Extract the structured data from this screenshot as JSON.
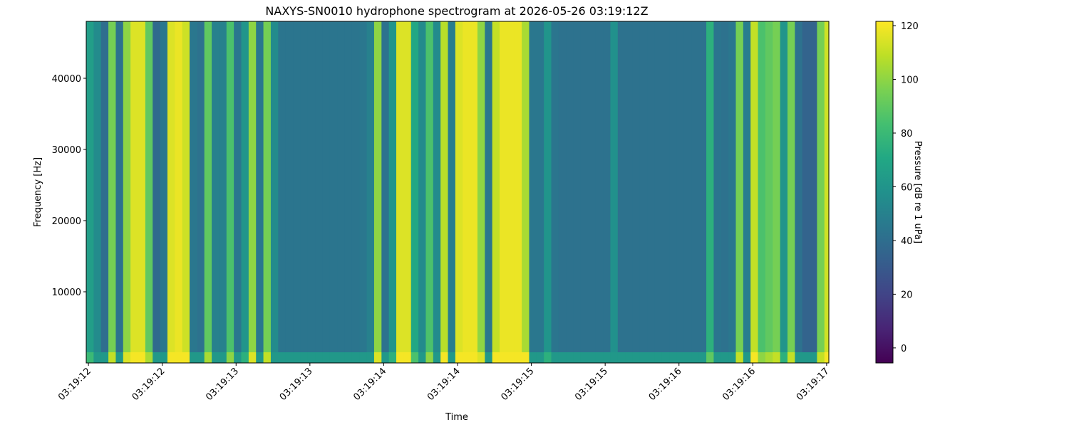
{
  "chart_data": {
    "type": "heatmap",
    "title": "NAXYS-SN0010 hydrophone spectrogram at 2026-05-26 03:19:12Z",
    "xlabel": "Time",
    "ylabel": "Frequency [Hz]",
    "colorbar_label": "Pressure [dB re 1 uPa]",
    "colormap": "viridis",
    "xlim": [
      11951.985,
      11957.015
    ],
    "xticks": [
      {
        "value": 11952,
        "label": "03:19:12"
      },
      {
        "value": 11952.5,
        "label": "03:19:12"
      },
      {
        "value": 11953,
        "label": "03:19:13"
      },
      {
        "value": 11953.5,
        "label": "03:19:13"
      },
      {
        "value": 11954,
        "label": "03:19:14"
      },
      {
        "value": 11954.5,
        "label": "03:19:14"
      },
      {
        "value": 11955,
        "label": "03:19:15"
      },
      {
        "value": 11955.5,
        "label": "03:19:15"
      },
      {
        "value": 11956,
        "label": "03:19:16"
      },
      {
        "value": 11956.5,
        "label": "03:19:16"
      },
      {
        "value": 11957,
        "label": "03:19:17"
      }
    ],
    "ylim": [
      0,
      48000
    ],
    "yticks": [
      10000,
      20000,
      30000,
      40000
    ],
    "clim": [
      -5.6,
      121.6
    ],
    "cticks": [
      0,
      20,
      40,
      60,
      80,
      100,
      120
    ],
    "x_edges": [
      11951.985,
      11952.035,
      11952.085,
      11952.135,
      11952.185,
      11952.235,
      11952.285,
      11952.335,
      11952.385,
      11952.435,
      11952.485,
      11952.535,
      11952.585,
      11952.635,
      11952.685,
      11952.735,
      11952.785,
      11952.835,
      11952.885,
      11952.935,
      11952.985,
      11953.035,
      11953.085,
      11953.135,
      11953.185,
      11953.235,
      11953.285,
      11953.335,
      11953.385,
      11953.435,
      11953.485,
      11953.535,
      11953.585,
      11953.635,
      11953.685,
      11953.735,
      11953.785,
      11953.835,
      11953.885,
      11953.935,
      11953.985,
      11954.035,
      11954.085,
      11954.135,
      11954.185,
      11954.235,
      11954.285,
      11954.335,
      11954.385,
      11954.435,
      11954.485,
      11954.535,
      11954.585,
      11954.635,
      11954.685,
      11954.735,
      11954.785,
      11954.835,
      11954.885,
      11954.935,
      11954.985,
      11955.035,
      11955.085,
      11955.135,
      11955.185,
      11955.235,
      11955.285,
      11955.335,
      11955.385,
      11955.435,
      11955.485,
      11955.535,
      11955.585,
      11955.635,
      11955.685,
      11955.735,
      11955.785,
      11955.835,
      11955.885,
      11955.935,
      11955.985,
      11956.035,
      11956.085,
      11956.135,
      11956.185,
      11956.235,
      11956.285,
      11956.335,
      11956.385,
      11956.435,
      11956.485,
      11956.535,
      11956.585,
      11956.635,
      11956.685,
      11956.735,
      11956.785,
      11956.835,
      11956.885,
      11956.935,
      11956.985,
      11957.015
    ],
    "y_edges": [
      0,
      1500,
      48000
    ],
    "z": [
      [
        80,
        62,
        62,
        110,
        62,
        115,
        120,
        120,
        105,
        62,
        62,
        120,
        120,
        120,
        62,
        62,
        105,
        62,
        62,
        100,
        62,
        75,
        115,
        62,
        110,
        62,
        62,
        62,
        62,
        62,
        62,
        62,
        62,
        62,
        62,
        62,
        62,
        62,
        62,
        115,
        62,
        75,
        120,
        120,
        85,
        62,
        100,
        62,
        120,
        62,
        120,
        120,
        120,
        115,
        62,
        120,
        120,
        120,
        120,
        120,
        62,
        62,
        75,
        62,
        62,
        62,
        62,
        62,
        62,
        62,
        62,
        62,
        62,
        62,
        62,
        62,
        62,
        62,
        62,
        62,
        62,
        62,
        62,
        62,
        90,
        62,
        62,
        62,
        110,
        62,
        120,
        100,
        105,
        110,
        75,
        110,
        62,
        62,
        62,
        110,
        120
      ],
      [
        65,
        55,
        40,
        95,
        42,
        100,
        115,
        115,
        90,
        38,
        45,
        115,
        118,
        112,
        45,
        42,
        90,
        50,
        50,
        85,
        45,
        60,
        100,
        45,
        95,
        55,
        44,
        44,
        44,
        44,
        44,
        44,
        44,
        44,
        44,
        44,
        44,
        45,
        50,
        100,
        42,
        60,
        115,
        115,
        70,
        55,
        85,
        55,
        108,
        48,
        115,
        118,
        118,
        100,
        45,
        110,
        118,
        118,
        118,
        105,
        45,
        45,
        60,
        44,
        42,
        42,
        42,
        42,
        42,
        42,
        42,
        58,
        42,
        42,
        42,
        42,
        42,
        42,
        42,
        42,
        42,
        42,
        42,
        42,
        75,
        44,
        42,
        45,
        95,
        48,
        110,
        85,
        90,
        95,
        60,
        95,
        42,
        35,
        35,
        95,
        112
      ]
    ]
  }
}
